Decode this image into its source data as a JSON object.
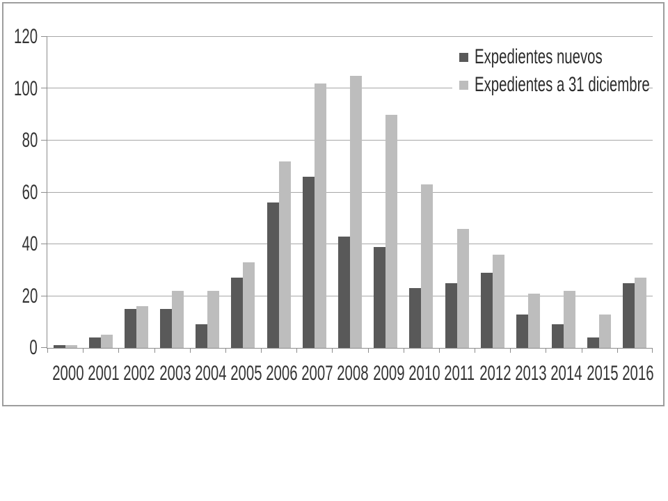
{
  "chart_data": {
    "type": "bar",
    "title": "",
    "xlabel": "",
    "ylabel": "",
    "categories": [
      "2000",
      "2001",
      "2002",
      "2003",
      "2004",
      "2005",
      "2006",
      "2007",
      "2008",
      "2009",
      "2010",
      "2011",
      "2012",
      "2013",
      "2014",
      "2015",
      "2016"
    ],
    "series": [
      {
        "name": "Expedientes nuevos",
        "color": "#595959",
        "values": [
          1,
          4,
          15,
          15,
          9,
          27,
          56,
          66,
          43,
          39,
          23,
          25,
          29,
          13,
          9,
          4,
          25
        ]
      },
      {
        "name": "Expedientes a 31 diciembre",
        "color": "#bdbdbd",
        "values": [
          1,
          5,
          16,
          22,
          22,
          33,
          72,
          102,
          105,
          90,
          63,
          46,
          36,
          21,
          22,
          13,
          27
        ]
      }
    ],
    "ylim": [
      0,
      120
    ],
    "yticks": [
      0,
      20,
      40,
      60,
      80,
      100,
      120
    ],
    "grid": true,
    "legend_position": "top-right",
    "axis_color": "#8c8c8c",
    "grid_color": "#a6a6a6",
    "text_color": "#333333"
  }
}
